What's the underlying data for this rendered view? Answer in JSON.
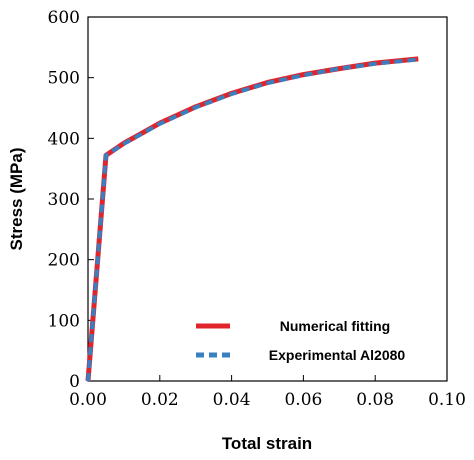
{
  "chart_data": {
    "type": "line",
    "xlabel": "Total strain",
    "ylabel": "Stress (MPa)",
    "xlim": [
      0.0,
      0.1
    ],
    "ylim": [
      0,
      600
    ],
    "xticks": [
      "0.00",
      "0.02",
      "0.04",
      "0.06",
      "0.08",
      "0.10"
    ],
    "yticks": [
      "0",
      "100",
      "200",
      "300",
      "400",
      "500",
      "600"
    ],
    "grid": false,
    "legend_position": "lower-right",
    "series": [
      {
        "name": "Numerical fitting",
        "color": "#e0242b",
        "style": "solid",
        "x": [
          0.0,
          0.005,
          0.01,
          0.02,
          0.03,
          0.04,
          0.05,
          0.06,
          0.07,
          0.08,
          0.092
        ],
        "y": [
          0,
          372,
          392,
          425,
          452,
          474,
          492,
          505,
          515,
          524,
          531
        ]
      },
      {
        "name": "Experimental Al2080",
        "color": "#3a7fbf",
        "style": "dashed",
        "x": [
          0.0,
          0.005,
          0.01,
          0.02,
          0.03,
          0.04,
          0.05,
          0.06,
          0.07,
          0.08,
          0.092
        ],
        "y": [
          0,
          372,
          391,
          424,
          451,
          473,
          491,
          504,
          515,
          523,
          530
        ]
      }
    ]
  }
}
